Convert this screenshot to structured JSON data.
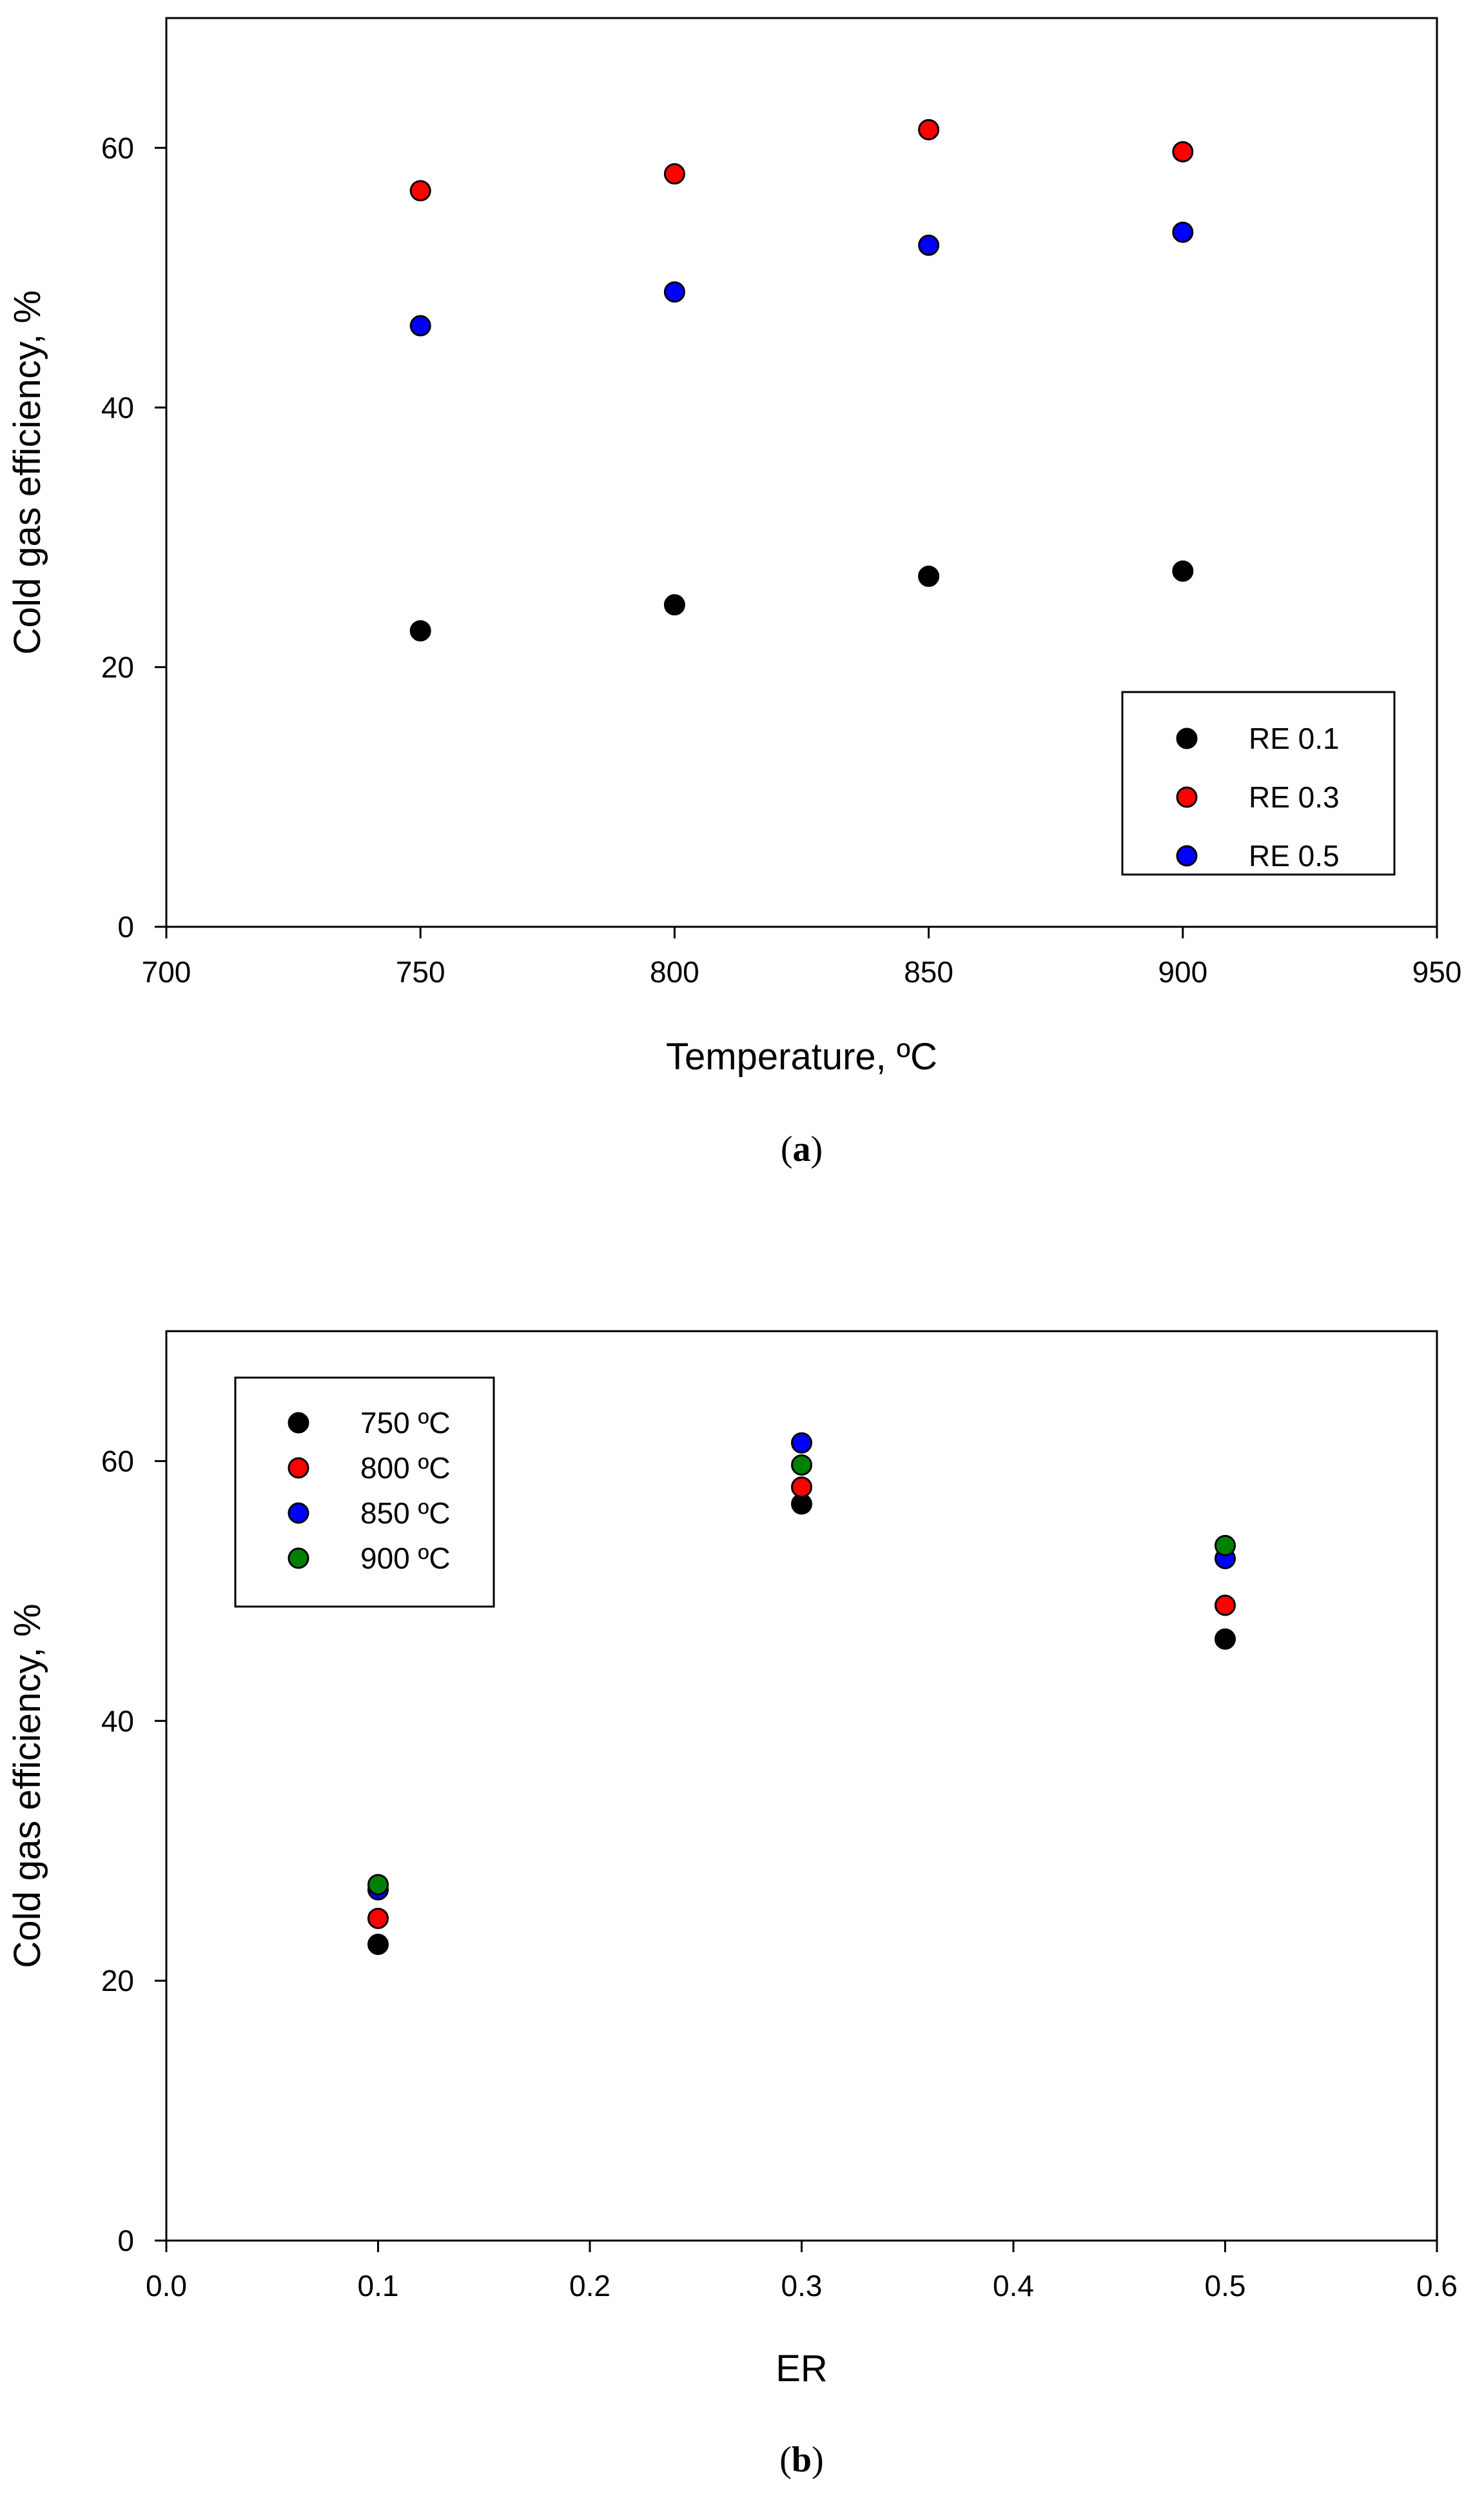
{
  "chart_data": [
    {
      "type": "scatter",
      "caption_open": "(",
      "caption_letter": "a",
      "caption_close": ")",
      "title": "",
      "xlabel": "Temperature, ºC",
      "ylabel": "Cold gas efficiency, %",
      "xlim": [
        700,
        950
      ],
      "ylim": [
        0,
        70
      ],
      "xticks": [
        "700",
        "750",
        "800",
        "850",
        "900",
        "950"
      ],
      "xtick_values": [
        700,
        750,
        800,
        850,
        900,
        950
      ],
      "yticks": [
        "0",
        "20",
        "40",
        "60"
      ],
      "ytick_values": [
        0,
        20,
        40,
        60
      ],
      "legend_position": "bottom-right",
      "series": [
        {
          "name": "RE 0.1",
          "color": "#000000",
          "points": [
            [
              750,
              22.8
            ],
            [
              800,
              24.8
            ],
            [
              850,
              27.0
            ],
            [
              900,
              27.4
            ]
          ]
        },
        {
          "name": "RE 0.3",
          "color": "#ff0000",
          "points": [
            [
              750,
              56.7
            ],
            [
              800,
              58.0
            ],
            [
              850,
              61.4
            ],
            [
              900,
              59.7
            ]
          ]
        },
        {
          "name": "RE 0.5",
          "color": "#0000ff",
          "points": [
            [
              750,
              46.3
            ],
            [
              800,
              48.9
            ],
            [
              850,
              52.5
            ],
            [
              900,
              53.5
            ]
          ]
        }
      ]
    },
    {
      "type": "scatter",
      "caption_open": "(",
      "caption_letter": "b",
      "caption_close": ")",
      "title": "",
      "xlabel": "ER",
      "ylabel": "Cold gas efficiency, %",
      "xlim": [
        0.0,
        0.6
      ],
      "ylim": [
        0,
        70
      ],
      "xticks": [
        "0.0",
        "0.1",
        "0.2",
        "0.3",
        "0.4",
        "0.5",
        "0.6"
      ],
      "xtick_values": [
        0.0,
        0.1,
        0.2,
        0.3,
        0.4,
        0.5,
        0.6
      ],
      "yticks": [
        "0",
        "20",
        "40",
        "60"
      ],
      "ytick_values": [
        0,
        20,
        40,
        60
      ],
      "legend_position": "top-left",
      "series": [
        {
          "name": "750 ºC",
          "color": "#000000",
          "points": [
            [
              0.1,
              22.8
            ],
            [
              0.3,
              56.7
            ],
            [
              0.5,
              46.3
            ]
          ]
        },
        {
          "name": "800 ºC",
          "color": "#ff0000",
          "points": [
            [
              0.1,
              24.8
            ],
            [
              0.3,
              58.0
            ],
            [
              0.5,
              48.9
            ]
          ]
        },
        {
          "name": "850 ºC",
          "color": "#0000ff",
          "points": [
            [
              0.1,
              27.0
            ],
            [
              0.3,
              61.4
            ],
            [
              0.5,
              52.5
            ]
          ]
        },
        {
          "name": "900 ºC",
          "color": "#008000",
          "points": [
            [
              0.1,
              27.4
            ],
            [
              0.3,
              59.7
            ],
            [
              0.5,
              53.5
            ]
          ]
        }
      ]
    }
  ]
}
